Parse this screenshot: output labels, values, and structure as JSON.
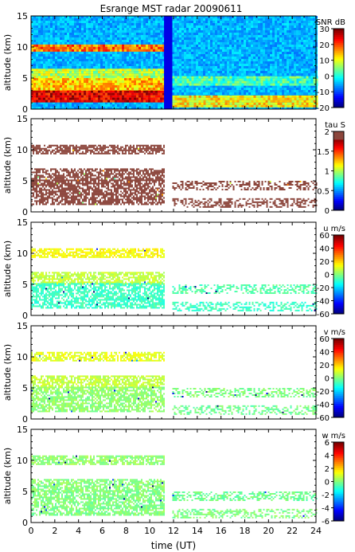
{
  "chart_data": {
    "type": "heatmap",
    "title": "Esrange MST radar 20090611",
    "xlabel": "time (UT)",
    "xlim": [
      0,
      24
    ],
    "x_ticks": [
      0,
      2,
      4,
      6,
      8,
      10,
      12,
      14,
      16,
      18,
      20,
      22,
      24
    ],
    "ylabel": "altitude (km)",
    "ylim": [
      0,
      15
    ],
    "y_ticks": [
      0,
      5,
      10,
      15
    ],
    "data_gap_hours": [
      11.2,
      11.9
    ],
    "panels": [
      {
        "id": "snr",
        "colorbar_label": "SNR dB",
        "colorbar_range": [
          -20,
          30
        ],
        "colorbar_ticks": [
          -20,
          -10,
          0,
          10,
          20,
          30
        ],
        "background_value": -5,
        "layers": [
          {
            "from": 0,
            "to": 11.2,
            "alt_min": 9.4,
            "alt_max": 10.4,
            "value": 18
          },
          {
            "from": 0,
            "to": 11.2,
            "alt_min": 5.0,
            "alt_max": 6.5,
            "value": 8
          },
          {
            "from": 0,
            "to": 11.2,
            "alt_min": 3.0,
            "alt_max": 5.0,
            "value": 14
          },
          {
            "from": 0,
            "to": 11.2,
            "alt_min": 1.2,
            "alt_max": 3.0,
            "value": 25
          },
          {
            "from": 11.9,
            "to": 24,
            "alt_min": 3.8,
            "alt_max": 5.3,
            "value": 2
          },
          {
            "from": 11.9,
            "to": 24,
            "alt_min": 0.6,
            "alt_max": 2.2,
            "value": 12
          }
        ]
      },
      {
        "id": "tau",
        "colorbar_label": "tau S",
        "colorbar_range": [
          0,
          2
        ],
        "colorbar_ticks": [
          0,
          0.5,
          1,
          1.5,
          2
        ],
        "typical_value": 2.0,
        "layers": [
          {
            "from": 0,
            "to": 11.2,
            "alt_min": 9.4,
            "alt_max": 10.8
          },
          {
            "from": 0,
            "to": 11.2,
            "alt_min": 5.2,
            "alt_max": 7.0
          },
          {
            "from": 0,
            "to": 11.2,
            "alt_min": 1.2,
            "alt_max": 5.2
          },
          {
            "from": 11.9,
            "to": 24,
            "alt_min": 3.5,
            "alt_max": 5.0
          },
          {
            "from": 11.9,
            "to": 24,
            "alt_min": 0.9,
            "alt_max": 2.2
          }
        ]
      },
      {
        "id": "u",
        "colorbar_label": "u m/s",
        "colorbar_range": [
          -60,
          60
        ],
        "colorbar_ticks": [
          -60,
          -40,
          -20,
          0,
          20,
          40,
          60
        ],
        "layers": [
          {
            "from": 0,
            "to": 11.2,
            "alt_min": 9.4,
            "alt_max": 10.8,
            "value": 15
          },
          {
            "from": 0,
            "to": 11.2,
            "alt_min": 5.2,
            "alt_max": 7.0,
            "value": 8
          },
          {
            "from": 0,
            "to": 11.2,
            "alt_min": 1.2,
            "alt_max": 5.2,
            "value": -8
          },
          {
            "from": 11.9,
            "to": 24,
            "alt_min": 3.5,
            "alt_max": 5.0,
            "value": -5
          },
          {
            "from": 11.9,
            "to": 24,
            "alt_min": 0.9,
            "alt_max": 2.2,
            "value": -8
          }
        ]
      },
      {
        "id": "v",
        "colorbar_label": "v m/s",
        "colorbar_range": [
          -60,
          60
        ],
        "colorbar_ticks": [
          -60,
          -40,
          -20,
          0,
          20,
          40,
          60
        ],
        "layers": [
          {
            "from": 0,
            "to": 11.2,
            "alt_min": 9.4,
            "alt_max": 10.8,
            "value": 12
          },
          {
            "from": 0,
            "to": 11.2,
            "alt_min": 5.2,
            "alt_max": 7.0,
            "value": 8
          },
          {
            "from": 0,
            "to": 11.2,
            "alt_min": 1.2,
            "alt_max": 5.2,
            "value": 2
          },
          {
            "from": 11.9,
            "to": 24,
            "alt_min": 3.5,
            "alt_max": 5.0,
            "value": 0
          },
          {
            "from": 11.9,
            "to": 24,
            "alt_min": 0.9,
            "alt_max": 2.2,
            "value": -2
          }
        ]
      },
      {
        "id": "w",
        "colorbar_label": "w m/s",
        "colorbar_range": [
          -6,
          6
        ],
        "colorbar_ticks": [
          -6,
          -4,
          -2,
          0,
          2,
          4,
          6
        ],
        "layers": [
          {
            "from": 0,
            "to": 11.2,
            "alt_min": 9.4,
            "alt_max": 10.8,
            "value": 0.2
          },
          {
            "from": 0,
            "to": 11.2,
            "alt_min": 5.2,
            "alt_max": 7.0,
            "value": 0.1
          },
          {
            "from": 0,
            "to": 11.2,
            "alt_min": 1.2,
            "alt_max": 5.2,
            "value": 0.0
          },
          {
            "from": 11.9,
            "to": 24,
            "alt_min": 3.5,
            "alt_max": 5.0,
            "value": -0.2
          },
          {
            "from": 11.9,
            "to": 24,
            "alt_min": 0.9,
            "alt_max": 2.2,
            "value": 0.0
          }
        ]
      }
    ]
  }
}
